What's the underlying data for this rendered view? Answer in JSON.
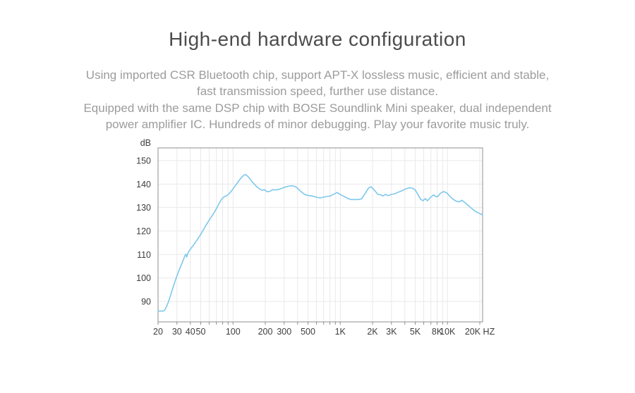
{
  "page": {
    "title": "High-end hardware configuration",
    "paragraphs": [
      "Using imported CSR Bluetooth chip, support APT-X lossless music, efficient and stable,",
      "fast transmission speed, further use distance.",
      "Equipped with the same DSP chip with BOSE Soundlink Mini speaker, dual independent",
      "power amplifier IC. Hundreds of minor debugging. Play your favorite music truly."
    ]
  },
  "chart_data": {
    "type": "line",
    "title": "",
    "xlabel": "",
    "ylabel": "dB",
    "x_unit": "HZ",
    "x_scale": "log",
    "x_range": [
      20,
      21240
    ],
    "y_range": [
      81.3,
      155.4
    ],
    "grid": true,
    "legend": "none",
    "y_ticks": [
      90,
      100,
      110,
      120,
      130,
      140,
      150
    ],
    "x_gridlines": [
      20,
      30,
      40,
      50,
      60,
      70,
      80,
      90,
      100,
      200,
      300,
      400,
      500,
      600,
      700,
      800,
      900,
      1000,
      2000,
      3000,
      4000,
      5000,
      6000,
      7000,
      8000,
      9000,
      10000,
      20000
    ],
    "x_tick_labels": [
      {
        "f": 20,
        "label": "20"
      },
      {
        "f": 30,
        "label": "30"
      },
      {
        "f": 40,
        "label": "40"
      },
      {
        "f": 50,
        "label": "50"
      },
      {
        "f": 100,
        "label": "100"
      },
      {
        "f": 200,
        "label": "200"
      },
      {
        "f": 300,
        "label": "300"
      },
      {
        "f": 500,
        "label": "500"
      },
      {
        "f": 1000,
        "label": "1K"
      },
      {
        "f": 2000,
        "label": "2K"
      },
      {
        "f": 3000,
        "label": "3K"
      },
      {
        "f": 5000,
        "label": "5K"
      },
      {
        "f": 8000,
        "label": "8K"
      },
      {
        "f": 10000,
        "label": "10K"
      },
      {
        "f": 20000,
        "label": "20K HZ"
      }
    ],
    "colors": {
      "line": "#7ec8ec",
      "grid": "#e9e9e9",
      "border": "#8f8f8f",
      "tick": "#8f8f8f",
      "label": "#3d3d3d"
    },
    "points": [
      [
        20,
        85.9
      ],
      [
        21,
        85.9
      ],
      [
        22,
        85.9
      ],
      [
        23,
        86.2
      ],
      [
        24,
        87.8
      ],
      [
        25,
        89.8
      ],
      [
        26,
        92.2
      ],
      [
        27,
        94.6
      ],
      [
        28,
        96.8
      ],
      [
        29,
        98.9
      ],
      [
        30,
        100.9
      ],
      [
        31.5,
        103.4
      ],
      [
        33,
        105.7
      ],
      [
        34.5,
        107.8
      ],
      [
        35.5,
        109.4
      ],
      [
        36.3,
        110.1
      ],
      [
        37,
        108.9
      ],
      [
        38,
        110.6
      ],
      [
        39.5,
        111.9
      ],
      [
        41,
        112.9
      ],
      [
        43,
        114.1
      ],
      [
        45,
        115.4
      ],
      [
        47.5,
        117
      ],
      [
        50,
        118.6
      ],
      [
        53,
        120.6
      ],
      [
        56,
        122.5
      ],
      [
        59.5,
        124.4
      ],
      [
        63,
        126.1
      ],
      [
        67,
        128
      ],
      [
        71,
        130
      ],
      [
        75,
        132.2
      ],
      [
        79,
        133.8
      ],
      [
        83,
        134.6
      ],
      [
        87,
        135
      ],
      [
        91,
        135.7
      ],
      [
        96,
        136.9
      ],
      [
        101,
        138.2
      ],
      [
        107,
        139.8
      ],
      [
        113,
        141.3
      ],
      [
        119,
        142.6
      ],
      [
        125,
        143.6
      ],
      [
        130,
        144.1
      ],
      [
        136,
        143.5
      ],
      [
        143,
        142.4
      ],
      [
        150,
        141.1
      ],
      [
        158,
        140
      ],
      [
        167,
        138.8
      ],
      [
        177,
        137.9
      ],
      [
        187,
        137.3
      ],
      [
        196,
        137.6
      ],
      [
        208,
        136.7
      ],
      [
        220,
        136.9
      ],
      [
        235,
        137.6
      ],
      [
        252,
        137.5
      ],
      [
        270,
        137.8
      ],
      [
        290,
        138.3
      ],
      [
        312,
        138.8
      ],
      [
        335,
        139.2
      ],
      [
        358,
        139.3
      ],
      [
        386,
        138.8
      ],
      [
        410,
        137.7
      ],
      [
        440,
        136.4
      ],
      [
        475,
        135.4
      ],
      [
        513,
        135.1
      ],
      [
        550,
        134.9
      ],
      [
        600,
        134.4
      ],
      [
        645,
        134.1
      ],
      [
        695,
        134.4
      ],
      [
        750,
        134.7
      ],
      [
        805,
        134.9
      ],
      [
        870,
        135.7
      ],
      [
        935,
        136.4
      ],
      [
        1010,
        135.4
      ],
      [
        1090,
        134.7
      ],
      [
        1170,
        133.9
      ],
      [
        1260,
        133.4
      ],
      [
        1360,
        133.4
      ],
      [
        1470,
        133.4
      ],
      [
        1580,
        133.7
      ],
      [
        1700,
        135.9
      ],
      [
        1840,
        138.4
      ],
      [
        1950,
        138.8
      ],
      [
        2100,
        137.2
      ],
      [
        2240,
        135.6
      ],
      [
        2400,
        135.4
      ],
      [
        2500,
        134.9
      ],
      [
        2650,
        135.6
      ],
      [
        2780,
        135.1
      ],
      [
        2900,
        135.3
      ],
      [
        3000,
        135.6
      ],
      [
        3240,
        135.9
      ],
      [
        3490,
        136.6
      ],
      [
        3750,
        137.1
      ],
      [
        4000,
        137.8
      ],
      [
        4350,
        138.4
      ],
      [
        4700,
        138.3
      ],
      [
        5000,
        137.5
      ],
      [
        5300,
        135.5
      ],
      [
        5600,
        133.6
      ],
      [
        5900,
        132.9
      ],
      [
        6200,
        133.8
      ],
      [
        6500,
        132.9
      ],
      [
        6950,
        134.3
      ],
      [
        7400,
        135.4
      ],
      [
        7800,
        134.6
      ],
      [
        8100,
        134.7
      ],
      [
        8600,
        136.1
      ],
      [
        9200,
        136.8
      ],
      [
        9800,
        136.3
      ],
      [
        10300,
        135.3
      ],
      [
        11000,
        133.9
      ],
      [
        11900,
        132.8
      ],
      [
        12800,
        132.4
      ],
      [
        13600,
        133.1
      ],
      [
        14600,
        132
      ],
      [
        15700,
        130.8
      ],
      [
        16900,
        129.5
      ],
      [
        18100,
        128.4
      ],
      [
        19400,
        127.7
      ],
      [
        20500,
        127.2
      ],
      [
        21240,
        126.8
      ]
    ]
  }
}
